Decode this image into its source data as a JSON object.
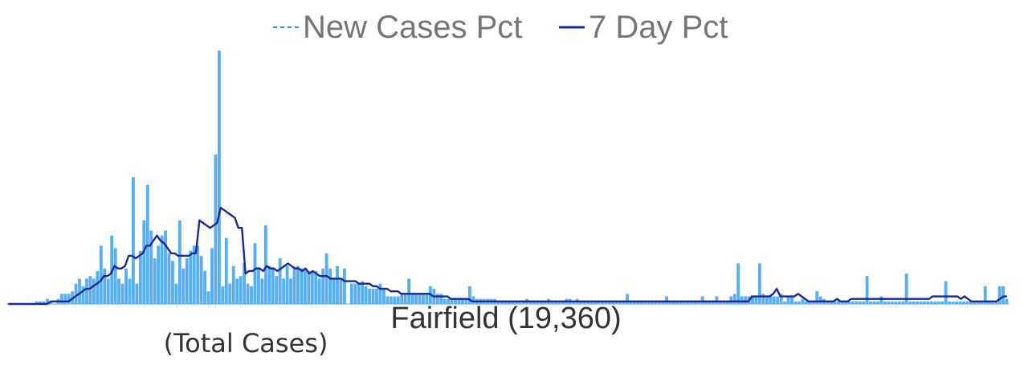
{
  "chart_data": {
    "type": "bar",
    "title": "Fairfield (19,360)",
    "subtitle": "(Total Cases)",
    "legend_position": "top-center",
    "grid": false,
    "ylim": [
      0,
      100
    ],
    "colors": {
      "bars": "#56aef5",
      "line": "#1a2796",
      "legend_dash": "#2a8fd6"
    },
    "series": [
      {
        "name": "New Cases Pct",
        "type": "bar",
        "values": [
          0,
          0,
          0,
          0,
          0,
          0,
          0,
          0,
          1,
          1,
          1,
          2,
          1,
          0,
          2,
          4,
          4,
          4,
          5,
          8,
          10,
          7,
          10,
          11,
          10,
          13,
          23,
          14,
          10,
          27,
          22,
          10,
          8,
          14,
          10,
          50,
          8,
          21,
          33,
          47,
          29,
          18,
          23,
          27,
          29,
          20,
          17,
          8,
          33,
          14,
          18,
          21,
          23,
          23,
          19,
          13,
          5,
          22,
          59,
          100,
          7,
          26,
          8,
          15,
          10,
          11,
          16,
          8,
          7,
          24,
          14,
          10,
          31,
          15,
          14,
          11,
          18,
          10,
          15,
          10,
          14,
          15,
          14,
          14,
          13,
          13,
          13,
          10,
          14,
          20,
          14,
          10,
          15,
          10,
          14,
          0,
          8,
          8,
          8,
          9,
          7,
          6,
          6,
          6,
          8,
          6,
          3,
          3,
          3,
          3,
          4,
          4,
          10,
          4,
          4,
          4,
          4,
          4,
          7,
          6,
          4,
          4,
          2,
          2,
          2,
          2,
          2,
          2,
          2,
          7,
          3,
          2,
          2,
          2,
          2,
          2,
          2,
          1,
          1,
          1,
          1,
          1,
          1,
          1,
          1,
          2,
          1,
          1,
          1,
          1,
          1,
          2,
          1,
          1,
          1,
          1,
          2,
          2,
          1,
          2,
          1,
          1,
          1,
          1,
          1,
          1,
          1,
          1,
          1,
          1,
          1,
          1,
          1,
          4,
          1,
          1,
          1,
          1,
          1,
          1,
          1,
          1,
          1,
          1,
          3,
          1,
          1,
          1,
          1,
          1,
          1,
          1,
          1,
          1,
          3,
          1,
          1,
          1,
          3,
          1,
          1,
          1,
          3,
          4,
          16,
          3,
          3,
          3,
          3,
          3,
          16,
          4,
          3,
          3,
          3,
          3,
          4,
          1,
          3,
          3,
          1,
          1,
          2,
          1,
          1,
          1,
          5,
          3,
          2,
          1,
          1,
          1,
          1,
          1,
          1,
          1,
          1,
          1,
          1,
          1,
          11,
          1,
          1,
          1,
          3,
          1,
          1,
          1,
          1,
          1,
          1,
          12,
          1,
          1,
          1,
          1,
          1,
          1,
          1,
          1,
          1,
          1,
          9,
          1,
          1,
          1,
          1,
          1,
          1,
          1,
          1,
          1,
          1,
          7,
          1,
          1,
          1,
          7,
          7,
          2
        ]
      },
      {
        "name": "7 Day Pct",
        "type": "line",
        "values": [
          0,
          0,
          0,
          0,
          0,
          0,
          0,
          0,
          0,
          0,
          0,
          0,
          1,
          1,
          1,
          1,
          1,
          1,
          2,
          3,
          4,
          5,
          6,
          6,
          7,
          8,
          9,
          11,
          11,
          12,
          15,
          14,
          14,
          15,
          19,
          19,
          18,
          19,
          20,
          23,
          23,
          25,
          27,
          25,
          24,
          22,
          20,
          20,
          19,
          19,
          19,
          19,
          20,
          20,
          33,
          32,
          31,
          30,
          31,
          32,
          38,
          37,
          36,
          35,
          34,
          30,
          30,
          12,
          13,
          13,
          14,
          14,
          13,
          15,
          14,
          14,
          13,
          14,
          15,
          16,
          15,
          14,
          14,
          13,
          14,
          12,
          13,
          12,
          11,
          11,
          11,
          10,
          10,
          10,
          10,
          9,
          9,
          9,
          9,
          8,
          8,
          8,
          8,
          7,
          7,
          6,
          6,
          6,
          5,
          5,
          5,
          4,
          4,
          4,
          4,
          4,
          4,
          4,
          4,
          4,
          3,
          3,
          3,
          3,
          3,
          2,
          2,
          2,
          2,
          2,
          2,
          1,
          1,
          1,
          1,
          1,
          1,
          1,
          1,
          1,
          1,
          1,
          1,
          1,
          1,
          1,
          1,
          1,
          1,
          1,
          1,
          1,
          1,
          1,
          1,
          1,
          1,
          1,
          1,
          1,
          1,
          1,
          1,
          1,
          1,
          1,
          1,
          1,
          1,
          1,
          1,
          1,
          1,
          1,
          1,
          1,
          1,
          1,
          1,
          1,
          1,
          1,
          1,
          1,
          1,
          1,
          1,
          1,
          1,
          1,
          1,
          1,
          1,
          1,
          1,
          1,
          1,
          1,
          1,
          1,
          1,
          1,
          1,
          1,
          1,
          1,
          1,
          1,
          1,
          1,
          3,
          3,
          3,
          3,
          3,
          3,
          4,
          6,
          3,
          3,
          3,
          3,
          3,
          4,
          3,
          2,
          1,
          1,
          1,
          1,
          1,
          1,
          1,
          1,
          2,
          1,
          1,
          1,
          2,
          2,
          2,
          2,
          2,
          2,
          2,
          2,
          2,
          2,
          2,
          2,
          2,
          2,
          2,
          2,
          2,
          2,
          2,
          2,
          2,
          2,
          2,
          3,
          3,
          3,
          3,
          3,
          3,
          3,
          3,
          2,
          3,
          2,
          1,
          1,
          1,
          1,
          1,
          1,
          1,
          1,
          2,
          3,
          3
        ]
      }
    ]
  }
}
